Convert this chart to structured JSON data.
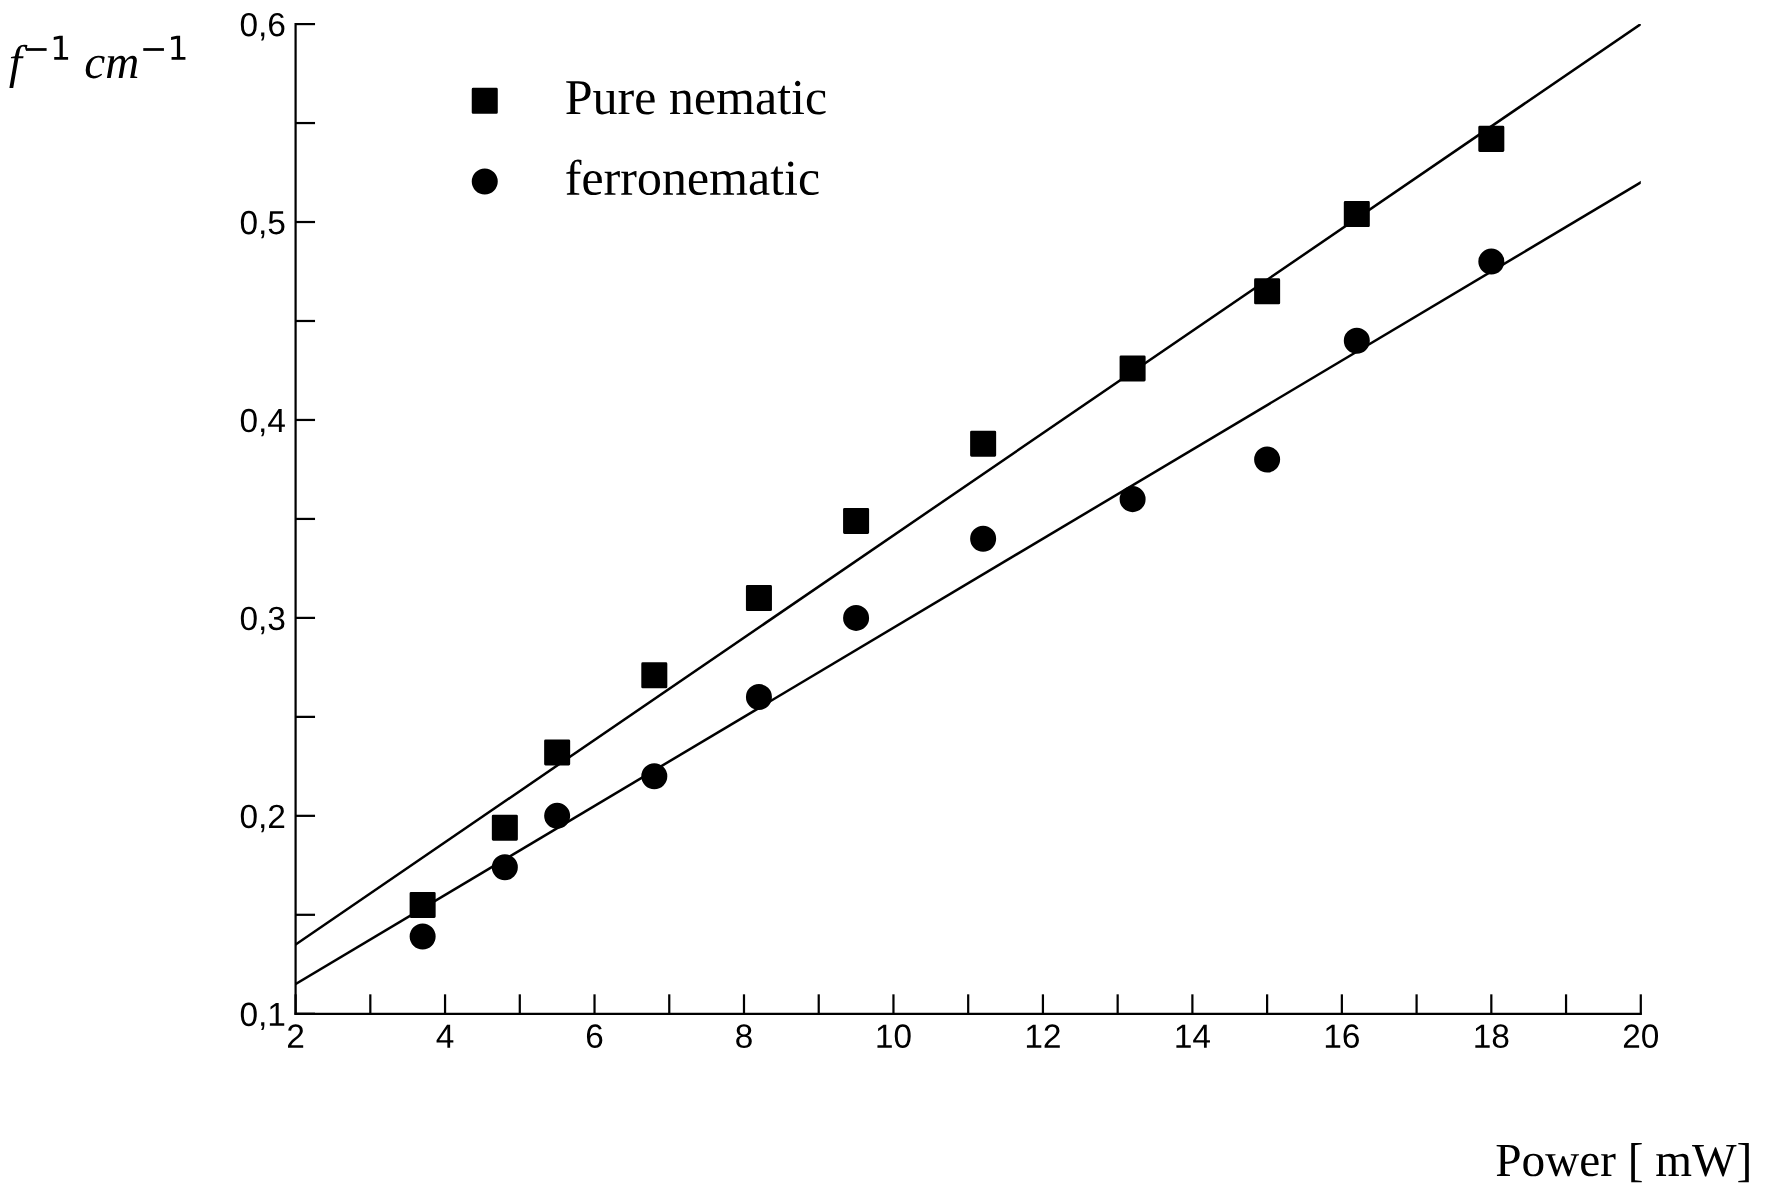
{
  "chart_data": {
    "type": "scatter",
    "xlabel": "Power [ mW]",
    "ylabel": "f$^{−1}$ cm$^{−1}$",
    "xlim": [
      2,
      20
    ],
    "ylim": [
      0.1,
      0.6
    ],
    "xticks": [
      2,
      {
        "value": 3,
        "label": null
      },
      4,
      {
        "value": 5,
        "label": null
      },
      6,
      {
        "value": 7,
        "label": null
      },
      8,
      {
        "value": 9,
        "label": null
      },
      10,
      {
        "value": 11,
        "label": null
      },
      12,
      {
        "value": 13,
        "label": null
      },
      14,
      {
        "value": 15,
        "label": null
      },
      16,
      {
        "value": 17,
        "label": null
      },
      18,
      {
        "value": 19,
        "label": null
      },
      20
    ],
    "yticks": [
      {
        "value": 0.1,
        "label": "0,1"
      },
      {
        "value": 0.15,
        "label": null
      },
      {
        "value": 0.2,
        "label": "0,2"
      },
      {
        "value": 0.25,
        "label": null
      },
      {
        "value": 0.3,
        "label": "0,3"
      },
      {
        "value": 0.35,
        "label": null
      },
      {
        "value": 0.4,
        "label": "0,4"
      },
      {
        "value": 0.45,
        "label": null
      },
      {
        "value": 0.5,
        "label": "0,5"
      },
      {
        "value": 0.55,
        "label": null
      },
      {
        "value": 0.6,
        "label": "0,6"
      }
    ],
    "grid": false,
    "legend": "top left",
    "series": [
      {
        "name": "Pure nematic",
        "color": "#000000",
        "marker": "square",
        "x": [
          3.7,
          4.8,
          5.5,
          6.8,
          8.2,
          9.5,
          11.2,
          13.2,
          15.0,
          16.2,
          18.0
        ],
        "values": [
          0.155,
          0.194,
          0.232,
          0.271,
          0.31,
          0.349,
          0.388,
          0.426,
          0.465,
          0.504,
          0.542
        ]
      },
      {
        "name": "ferronematic",
        "color": "#000000",
        "marker": "circle",
        "x": [
          3.7,
          4.8,
          5.5,
          6.8,
          8.2,
          9.5,
          11.2,
          13.2,
          15.0,
          16.2,
          18.0
        ],
        "values": [
          0.139,
          0.174,
          0.2,
          0.22,
          0.26,
          0.3,
          0.34,
          0.36,
          0.38,
          0.44,
          0.48
        ]
      },
      {
        "type": "line",
        "color": "#000000",
        "line_style": "solid",
        "x": [
          2,
          20
        ],
        "values": [
          0.135,
          0.6
        ]
      },
      {
        "type": "line",
        "color": "#000000",
        "line_style": "solid",
        "x": [
          2,
          20
        ],
        "values": [
          0.115,
          0.52
        ]
      }
    ]
  }
}
